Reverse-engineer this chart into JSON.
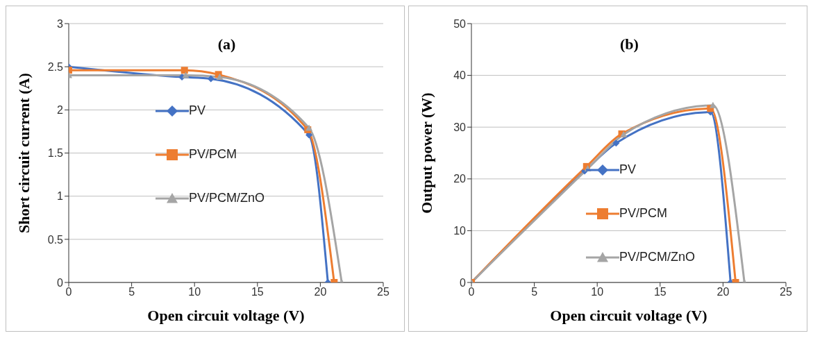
{
  "chart_data": [
    {
      "type": "line",
      "title": "(a)",
      "xlabel": "Open circuit voltage (V)",
      "ylabel": "Short circuit current (A)",
      "xlim": [
        0,
        25
      ],
      "xticks": [
        0,
        5,
        10,
        15,
        20,
        25
      ],
      "ylim": [
        0,
        3
      ],
      "yticks": [
        0,
        0.5,
        1,
        1.5,
        2,
        2.5,
        3
      ],
      "grid": "y",
      "legend": "center",
      "series": [
        {
          "name": "PV",
          "color": "#4472c4",
          "marker": "diamond",
          "x": [
            0,
            9.0,
            11.3,
            19.1,
            20.6
          ],
          "values": [
            2.5,
            2.38,
            2.36,
            1.71,
            0
          ]
        },
        {
          "name": "PV/PCM",
          "color": "#ed7d31",
          "marker": "square",
          "x": [
            0,
            9.2,
            11.9,
            19.0,
            21.1
          ],
          "values": [
            2.46,
            2.46,
            2.41,
            1.77,
            0
          ]
        },
        {
          "name": "PV/PCM/ZnO",
          "color": "#a5a5a5",
          "marker": "triangle",
          "x": [
            0,
            9.3,
            12.0,
            19.1,
            21.7
          ],
          "values": [
            2.4,
            2.4,
            2.38,
            1.79,
            0
          ]
        }
      ]
    },
    {
      "type": "line",
      "title": "(b)",
      "xlabel": "Open circuit voltage (V)",
      "ylabel": "Output power (W)",
      "xlim": [
        0,
        25
      ],
      "xticks": [
        0,
        5,
        10,
        15,
        20,
        25
      ],
      "ylim": [
        0,
        50
      ],
      "yticks": [
        0,
        10,
        20,
        30,
        40,
        50
      ],
      "grid": "y",
      "legend": "bottom",
      "series": [
        {
          "name": "PV",
          "color": "#4472c4",
          "marker": "diamond",
          "x": [
            0,
            9.0,
            11.5,
            19.0,
            20.6
          ],
          "values": [
            0,
            21.5,
            26.9,
            32.9,
            0
          ]
        },
        {
          "name": "PV/PCM",
          "color": "#ed7d31",
          "marker": "square",
          "x": [
            0,
            9.15,
            11.95,
            19.0,
            21.0
          ],
          "values": [
            0,
            22.4,
            28.7,
            33.6,
            0
          ]
        },
        {
          "name": "PV/PCM/ZnO",
          "color": "#a5a5a5",
          "marker": "triangle",
          "x": [
            0,
            9.25,
            12.1,
            19.2,
            21.7
          ],
          "values": [
            0,
            22.0,
            28.6,
            34.2,
            0
          ]
        }
      ]
    }
  ]
}
